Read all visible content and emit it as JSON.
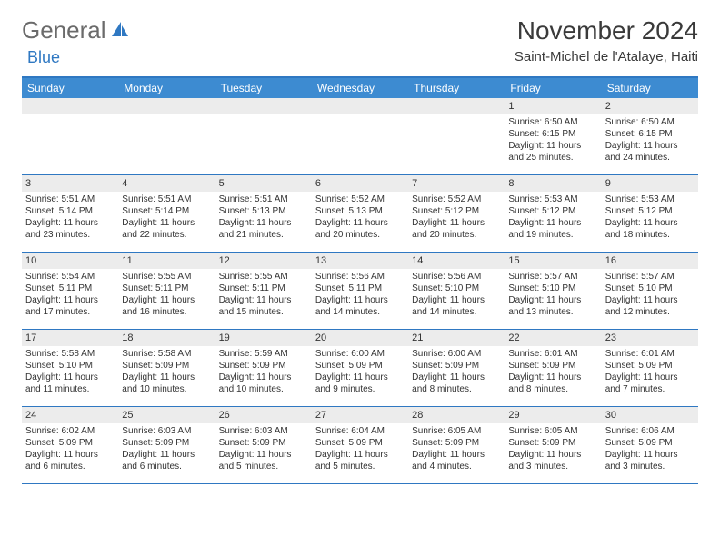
{
  "brand": {
    "general": "General",
    "blue": "Blue"
  },
  "title": "November 2024",
  "location": "Saint-Michel de l'Atalaye, Haiti",
  "colors": {
    "header_bar": "#3d8bd1",
    "accent_line": "#2f78c2",
    "daynum_bg": "#ececec",
    "text": "#333333",
    "logo_gray": "#6b6b6b",
    "logo_blue": "#2f78c2",
    "background": "#ffffff"
  },
  "dow": [
    "Sunday",
    "Monday",
    "Tuesday",
    "Wednesday",
    "Thursday",
    "Friday",
    "Saturday"
  ],
  "weeks": [
    [
      {
        "n": "",
        "lines": []
      },
      {
        "n": "",
        "lines": []
      },
      {
        "n": "",
        "lines": []
      },
      {
        "n": "",
        "lines": []
      },
      {
        "n": "",
        "lines": []
      },
      {
        "n": "1",
        "lines": [
          "Sunrise: 6:50 AM",
          "Sunset: 6:15 PM",
          "Daylight: 11 hours",
          "and 25 minutes."
        ]
      },
      {
        "n": "2",
        "lines": [
          "Sunrise: 6:50 AM",
          "Sunset: 6:15 PM",
          "Daylight: 11 hours",
          "and 24 minutes."
        ]
      }
    ],
    [
      {
        "n": "3",
        "lines": [
          "Sunrise: 5:51 AM",
          "Sunset: 5:14 PM",
          "Daylight: 11 hours",
          "and 23 minutes."
        ]
      },
      {
        "n": "4",
        "lines": [
          "Sunrise: 5:51 AM",
          "Sunset: 5:14 PM",
          "Daylight: 11 hours",
          "and 22 minutes."
        ]
      },
      {
        "n": "5",
        "lines": [
          "Sunrise: 5:51 AM",
          "Sunset: 5:13 PM",
          "Daylight: 11 hours",
          "and 21 minutes."
        ]
      },
      {
        "n": "6",
        "lines": [
          "Sunrise: 5:52 AM",
          "Sunset: 5:13 PM",
          "Daylight: 11 hours",
          "and 20 minutes."
        ]
      },
      {
        "n": "7",
        "lines": [
          "Sunrise: 5:52 AM",
          "Sunset: 5:12 PM",
          "Daylight: 11 hours",
          "and 20 minutes."
        ]
      },
      {
        "n": "8",
        "lines": [
          "Sunrise: 5:53 AM",
          "Sunset: 5:12 PM",
          "Daylight: 11 hours",
          "and 19 minutes."
        ]
      },
      {
        "n": "9",
        "lines": [
          "Sunrise: 5:53 AM",
          "Sunset: 5:12 PM",
          "Daylight: 11 hours",
          "and 18 minutes."
        ]
      }
    ],
    [
      {
        "n": "10",
        "lines": [
          "Sunrise: 5:54 AM",
          "Sunset: 5:11 PM",
          "Daylight: 11 hours",
          "and 17 minutes."
        ]
      },
      {
        "n": "11",
        "lines": [
          "Sunrise: 5:55 AM",
          "Sunset: 5:11 PM",
          "Daylight: 11 hours",
          "and 16 minutes."
        ]
      },
      {
        "n": "12",
        "lines": [
          "Sunrise: 5:55 AM",
          "Sunset: 5:11 PM",
          "Daylight: 11 hours",
          "and 15 minutes."
        ]
      },
      {
        "n": "13",
        "lines": [
          "Sunrise: 5:56 AM",
          "Sunset: 5:11 PM",
          "Daylight: 11 hours",
          "and 14 minutes."
        ]
      },
      {
        "n": "14",
        "lines": [
          "Sunrise: 5:56 AM",
          "Sunset: 5:10 PM",
          "Daylight: 11 hours",
          "and 14 minutes."
        ]
      },
      {
        "n": "15",
        "lines": [
          "Sunrise: 5:57 AM",
          "Sunset: 5:10 PM",
          "Daylight: 11 hours",
          "and 13 minutes."
        ]
      },
      {
        "n": "16",
        "lines": [
          "Sunrise: 5:57 AM",
          "Sunset: 5:10 PM",
          "Daylight: 11 hours",
          "and 12 minutes."
        ]
      }
    ],
    [
      {
        "n": "17",
        "lines": [
          "Sunrise: 5:58 AM",
          "Sunset: 5:10 PM",
          "Daylight: 11 hours",
          "and 11 minutes."
        ]
      },
      {
        "n": "18",
        "lines": [
          "Sunrise: 5:58 AM",
          "Sunset: 5:09 PM",
          "Daylight: 11 hours",
          "and 10 minutes."
        ]
      },
      {
        "n": "19",
        "lines": [
          "Sunrise: 5:59 AM",
          "Sunset: 5:09 PM",
          "Daylight: 11 hours",
          "and 10 minutes."
        ]
      },
      {
        "n": "20",
        "lines": [
          "Sunrise: 6:00 AM",
          "Sunset: 5:09 PM",
          "Daylight: 11 hours",
          "and 9 minutes."
        ]
      },
      {
        "n": "21",
        "lines": [
          "Sunrise: 6:00 AM",
          "Sunset: 5:09 PM",
          "Daylight: 11 hours",
          "and 8 minutes."
        ]
      },
      {
        "n": "22",
        "lines": [
          "Sunrise: 6:01 AM",
          "Sunset: 5:09 PM",
          "Daylight: 11 hours",
          "and 8 minutes."
        ]
      },
      {
        "n": "23",
        "lines": [
          "Sunrise: 6:01 AM",
          "Sunset: 5:09 PM",
          "Daylight: 11 hours",
          "and 7 minutes."
        ]
      }
    ],
    [
      {
        "n": "24",
        "lines": [
          "Sunrise: 6:02 AM",
          "Sunset: 5:09 PM",
          "Daylight: 11 hours",
          "and 6 minutes."
        ]
      },
      {
        "n": "25",
        "lines": [
          "Sunrise: 6:03 AM",
          "Sunset: 5:09 PM",
          "Daylight: 11 hours",
          "and 6 minutes."
        ]
      },
      {
        "n": "26",
        "lines": [
          "Sunrise: 6:03 AM",
          "Sunset: 5:09 PM",
          "Daylight: 11 hours",
          "and 5 minutes."
        ]
      },
      {
        "n": "27",
        "lines": [
          "Sunrise: 6:04 AM",
          "Sunset: 5:09 PM",
          "Daylight: 11 hours",
          "and 5 minutes."
        ]
      },
      {
        "n": "28",
        "lines": [
          "Sunrise: 6:05 AM",
          "Sunset: 5:09 PM",
          "Daylight: 11 hours",
          "and 4 minutes."
        ]
      },
      {
        "n": "29",
        "lines": [
          "Sunrise: 6:05 AM",
          "Sunset: 5:09 PM",
          "Daylight: 11 hours",
          "and 3 minutes."
        ]
      },
      {
        "n": "30",
        "lines": [
          "Sunrise: 6:06 AM",
          "Sunset: 5:09 PM",
          "Daylight: 11 hours",
          "and 3 minutes."
        ]
      }
    ]
  ]
}
